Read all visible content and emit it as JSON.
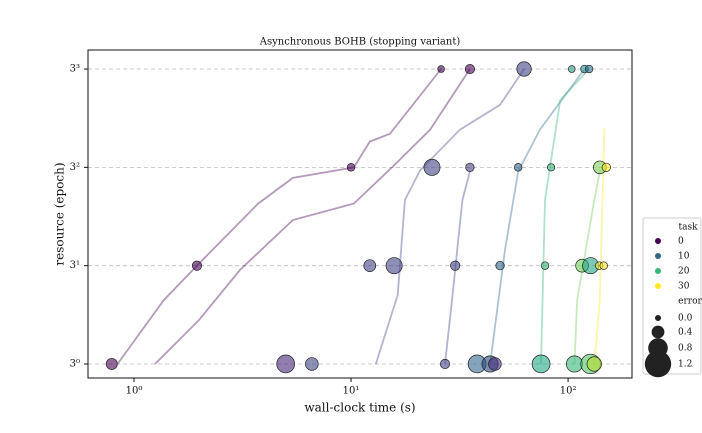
{
  "chart_data": {
    "type": "scatter",
    "title": "Asynchronous BOHB (stopping variant)",
    "x_label": "wall-clock time (s)",
    "y_label": "resource (epoch)",
    "xscale": "log",
    "yscale": "log3",
    "xlim": [
      0.614,
      197
    ],
    "ylim": [
      0.855,
      33.4
    ],
    "xticks": [
      {
        "value": 1,
        "label": "10⁰"
      },
      {
        "value": 10,
        "label": "10¹"
      },
      {
        "value": 100,
        "label": "10²"
      }
    ],
    "yticks": [
      {
        "value": 1,
        "label": "3⁰"
      },
      {
        "value": 3,
        "label": "3¹"
      },
      {
        "value": 9,
        "label": "3²"
      },
      {
        "value": 27,
        "label": "3³"
      }
    ],
    "grid": true,
    "legend_position": "right",
    "lines": [
      {
        "color": "#440154",
        "x": [
          0.84,
          1.37,
          1.95,
          3.73,
          5.4,
          10.3,
          12.2,
          15.1,
          26
        ],
        "y": [
          1,
          2.04,
          3,
          6.0,
          8.0,
          9.0,
          12.0,
          13.1,
          27
        ]
      },
      {
        "color": "#440154",
        "x": [
          1.25,
          2.0,
          3.08,
          5.4,
          10.3,
          15.6,
          23.1,
          35.3
        ],
        "y": [
          1,
          1.64,
          2.86,
          5.0,
          6.0,
          9.1,
          13.7,
          27
        ]
      },
      {
        "color": "#414487",
        "x": [
          13.0,
          16.4,
          17.7,
          20.8,
          31.7,
          48.6,
          62.7
        ],
        "y": [
          1,
          2.16,
          6.25,
          8.7,
          13.7,
          18.1,
          27
        ]
      },
      {
        "color": "#414487",
        "x": [
          27.1,
          29.2,
          32.6,
          35.3
        ],
        "y": [
          1,
          2.04,
          6.25,
          8.6
        ]
      },
      {
        "color": "#31688e",
        "x": [
          43.7,
          51.2,
          58.9,
          74.1,
          119
        ],
        "y": [
          1,
          3.58,
          8.6,
          13.7,
          27
        ]
      },
      {
        "color": "#35b779",
        "x": [
          75,
          78.3,
          92,
          125
        ],
        "y": [
          1,
          6.25,
          19.1,
          27
        ]
      },
      {
        "color": "#6ece58",
        "x": [
          107,
          110,
          132,
          140
        ],
        "y": [
          1,
          2.04,
          6.25,
          8.6
        ]
      },
      {
        "color": "#fde725",
        "x": [
          132,
          140,
          147
        ],
        "y": [
          1,
          2.04,
          14.0
        ]
      }
    ],
    "points": {
      "x": [
        26,
        35.3,
        62.7,
        104,
        119,
        125,
        10,
        23.6,
        35.3,
        58.9,
        83.5,
        140,
        150,
        1.95,
        12.2,
        15.8,
        30.2,
        48.6,
        78.3,
        116,
        127,
        139,
        146,
        0.79,
        5.0,
        6.6,
        27.1,
        38.1,
        43.7,
        46,
        75.1,
        107,
        127,
        132
      ],
      "y": [
        27,
        27,
        27,
        27,
        27,
        27,
        9,
        9,
        9,
        9,
        9,
        9,
        9,
        3,
        3,
        3,
        3,
        3,
        3,
        3,
        3,
        3,
        3,
        1,
        1,
        1,
        1,
        1,
        1,
        1,
        1,
        1,
        1,
        1
      ],
      "error": [
        0.05,
        0.2,
        0.5,
        0.05,
        0.1,
        0.1,
        0.1,
        0.6,
        0.15,
        0.1,
        0.08,
        0.4,
        0.15,
        0.2,
        0.35,
        0.6,
        0.2,
        0.15,
        0.1,
        0.4,
        0.6,
        0.1,
        0.1,
        0.3,
        0.7,
        0.4,
        0.2,
        0.7,
        0.6,
        0.4,
        0.7,
        0.6,
        0.8,
        0.5
      ],
      "colors": [
        "#440154",
        "#440154",
        "#414487",
        "#2a9d8a",
        "#21918c",
        "#2c728e",
        "#440154",
        "#414487",
        "#414487",
        "#31688e",
        "#35b779",
        "#7ad151",
        "#fde725",
        "#440154",
        "#414487",
        "#414487",
        "#414487",
        "#31688e",
        "#35b779",
        "#6ece58",
        "#21a585",
        "#fde725",
        "#fde725",
        "#440154",
        "#482878",
        "#414487",
        "#414487",
        "#31688e",
        "#26477e",
        "#472d7b",
        "#22a884",
        "#35b779",
        "#52c569",
        "#b5de2b"
      ]
    },
    "legend": {
      "task_title": "task",
      "task": [
        {
          "value": 0,
          "color": "#440154"
        },
        {
          "value": 10,
          "color": "#31688e"
        },
        {
          "value": 20,
          "color": "#35b779"
        },
        {
          "value": 30,
          "color": "#fde725"
        }
      ],
      "error_title": "error",
      "error": [
        {
          "value": 0,
          "label": "0.0"
        },
        {
          "value": 0.4,
          "label": "0.4"
        },
        {
          "value": 0.8,
          "label": "0.8"
        },
        {
          "value": 1.2,
          "label": "1.2"
        }
      ]
    }
  }
}
